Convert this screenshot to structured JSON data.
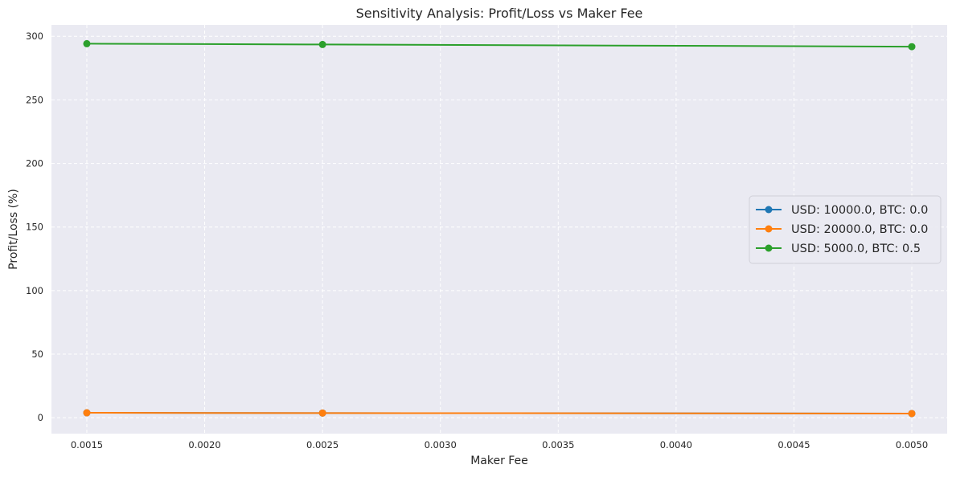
{
  "chart_data": {
    "type": "line",
    "title": "Sensitivity Analysis: Profit/Loss vs Maker Fee",
    "xlabel": "Maker Fee",
    "ylabel": "Profit/Loss (%)",
    "xlim": [
      0.00135,
      0.00515
    ],
    "ylim": [
      -12.5,
      309
    ],
    "xticks": [
      0.0015,
      0.002,
      0.0025,
      0.003,
      0.0035,
      0.004,
      0.0045,
      0.005
    ],
    "xtick_labels": [
      "0.0015",
      "0.0020",
      "0.0025",
      "0.0030",
      "0.0035",
      "0.0040",
      "0.0045",
      "0.0050"
    ],
    "yticks": [
      0,
      50,
      100,
      150,
      200,
      250,
      300
    ],
    "ytick_labels": [
      "0",
      "50",
      "100",
      "150",
      "200",
      "250",
      "300"
    ],
    "grid": true,
    "legend_position": "center-right",
    "x": [
      0.0015,
      0.0025,
      0.005
    ],
    "series": [
      {
        "name": "USD: 10000.0, BTC: 0.0",
        "color": "#1f77b4",
        "values": [
          3.9,
          3.7,
          3.3
        ]
      },
      {
        "name": "USD: 20000.0, BTC: 0.0",
        "color": "#ff7f0e",
        "values": [
          3.9,
          3.7,
          3.3
        ]
      },
      {
        "name": "USD: 5000.0, BTC: 0.5",
        "color": "#2ca02c",
        "values": [
          294.2,
          293.6,
          291.9
        ]
      }
    ]
  }
}
